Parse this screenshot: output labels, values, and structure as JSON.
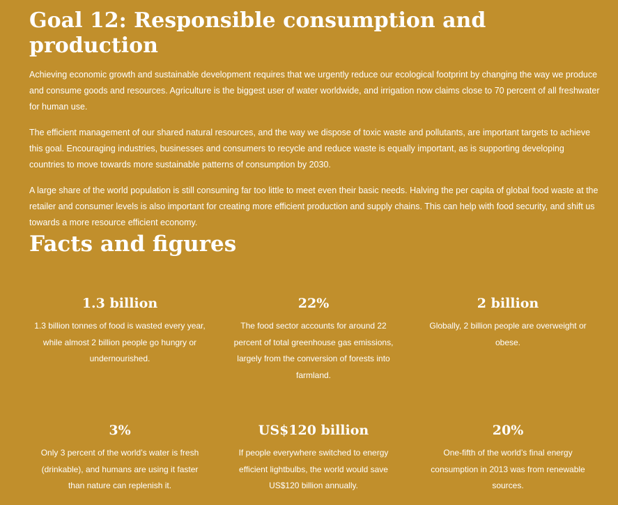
{
  "goal": {
    "title": "Goal 12: Responsible consumption and production",
    "paragraphs": [
      "Achieving economic growth and sustainable development requires that we urgently reduce our ecological footprint by changing the way we produce and consume goods and resources. Agriculture is the biggest user of water worldwide, and irrigation now claims close to 70 percent of all freshwater for human use.",
      "The efficient management of our shared natural resources, and the way we dispose of toxic waste and pollutants, are important targets to achieve this goal. Encouraging industries, businesses and consumers to recycle and reduce waste is equally important, as is supporting developing countries to move towards more sustainable patterns of consumption by 2030.",
      "A large share of the world population is still consuming far too little to meet even their basic needs.  Halving the per capita of global food waste at the retailer and consumer levels is also important for creating more efficient production and supply chains. This can help with food security, and shift us towards a more resource efficient economy."
    ]
  },
  "facts": {
    "title": "Facts and figures",
    "items": [
      {
        "figure": "1.3 billion",
        "text": "1.3 billion tonnes of food is wasted every year, while almost 2 billion people go hungry or undernourished."
      },
      {
        "figure": "22%",
        "text": "The food sector accounts for around 22 percent of total greenhouse gas emissions, largely from the conversion of forests into farmland."
      },
      {
        "figure": "2 billion",
        "text": "Globally, 2 billion people are overweight or obese."
      },
      {
        "figure": "3%",
        "text": "Only 3 percent of the world’s water is fresh (drinkable), and humans are using it faster than nature can replenish it."
      },
      {
        "figure": "US$120 billion",
        "text": "If people everywhere switched to energy efficient lightbulbs, the world would save US$120 billion annually."
      },
      {
        "figure": "20%",
        "text": "One-fifth of the world’s final energy consumption in 2013 was from renewable sources."
      }
    ]
  },
  "colors": {
    "background": "#c18f2c",
    "text": "#ffffff"
  }
}
